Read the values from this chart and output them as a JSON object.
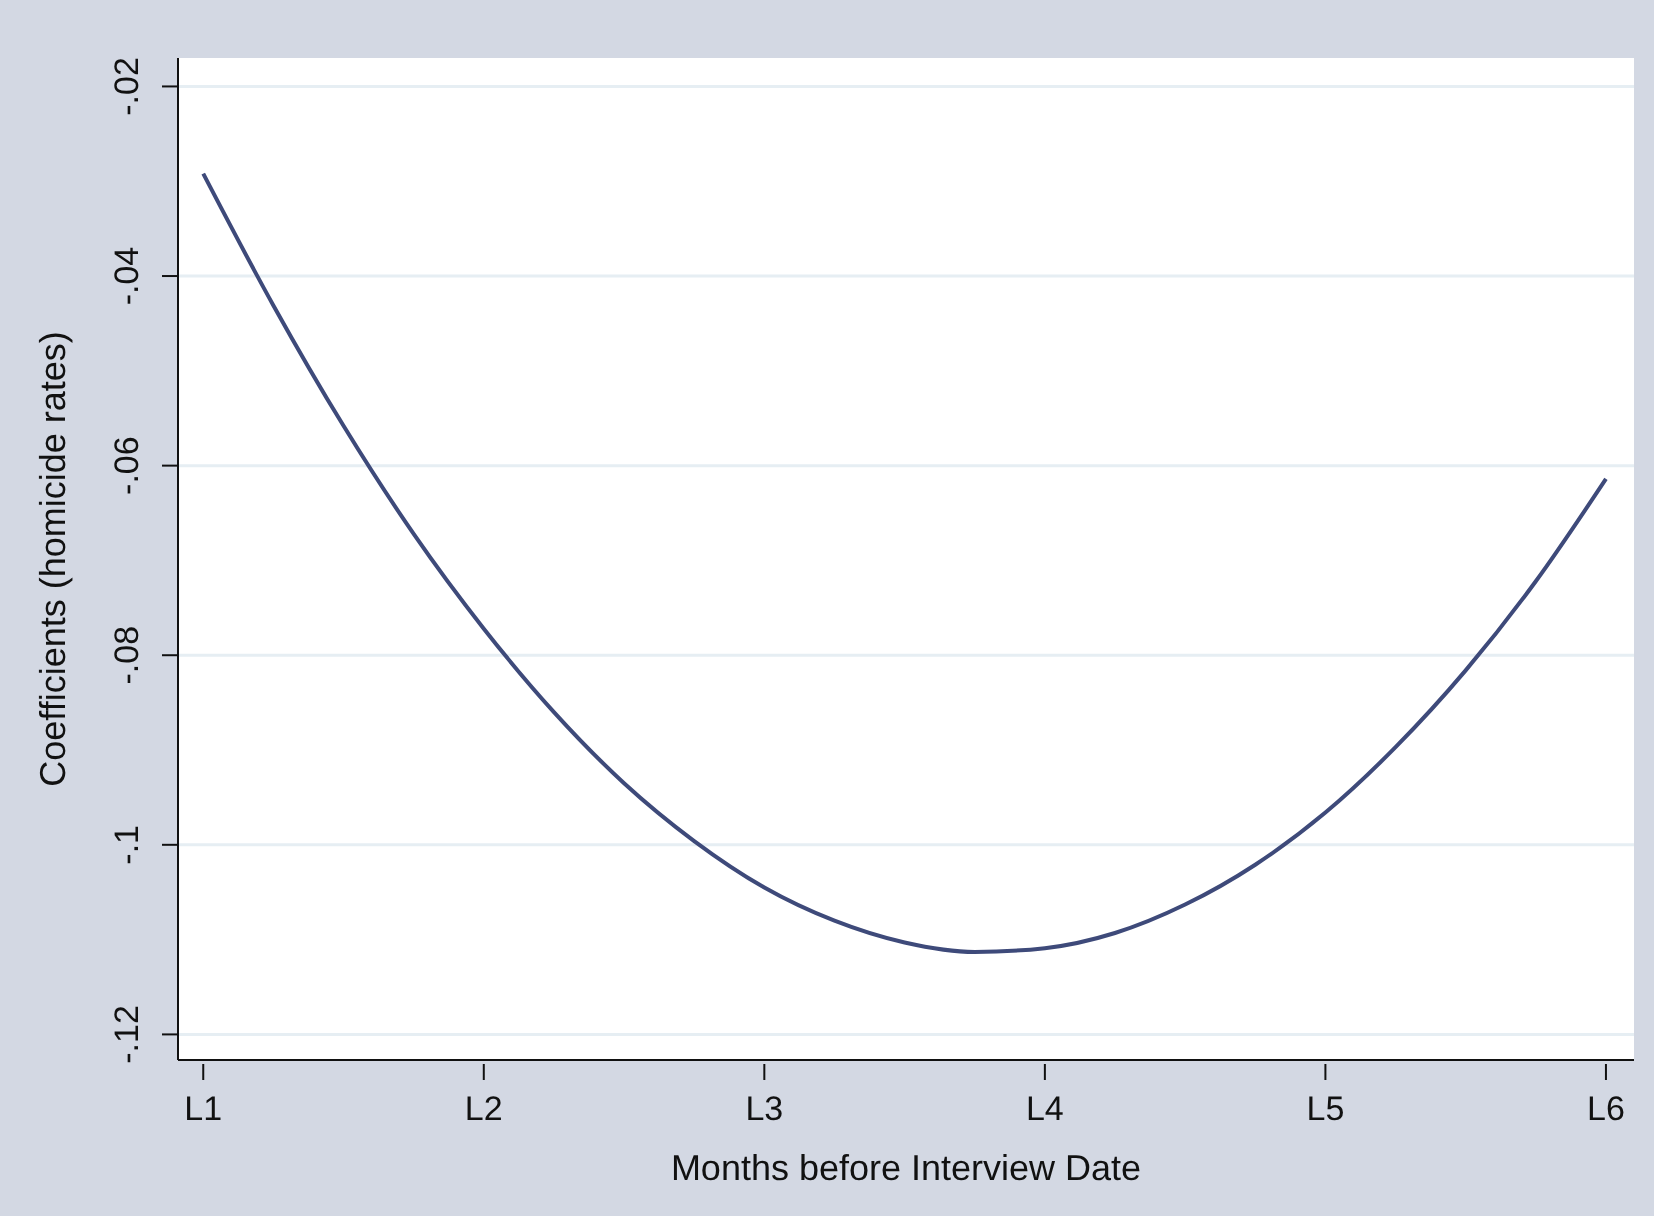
{
  "chart_data": {
    "type": "line",
    "xlabel": "Months before Interview Date",
    "ylabel": "Coefficients (homicide rates)",
    "categories": [
      "L1",
      null,
      null,
      null,
      "L2",
      null,
      null,
      null,
      "L3",
      null,
      null,
      null,
      "L4",
      null,
      null,
      null,
      "L5",
      null,
      null,
      null,
      "L6"
    ],
    "series": [
      {
        "color": "#3e4a7a",
        "values": [
          -0.0292,
          -0.0431,
          -0.0558,
          -0.0672,
          -0.0772,
          -0.086,
          -0.0935,
          -0.0996,
          -0.1045,
          -0.108,
          -0.1103,
          -0.1113,
          -0.1109,
          -0.1093,
          -0.1063,
          -0.1021,
          -0.0966,
          -0.0897,
          -0.0816,
          -0.0722,
          -0.0614
        ]
      }
    ],
    "ylim": [
      -0.1227,
      -0.017
    ],
    "yticks": [
      {
        "value": -0.12,
        "label": "-.12"
      },
      {
        "value": -0.1,
        "label": "-.1"
      },
      {
        "value": -0.08,
        "label": "-.08"
      },
      {
        "value": -0.06,
        "label": "-.06"
      },
      {
        "value": -0.04,
        "label": "-.04"
      },
      {
        "value": -0.02,
        "label": "-.02"
      }
    ],
    "grid": "y",
    "legend": false,
    "marker": "none",
    "line_style": "solid"
  }
}
